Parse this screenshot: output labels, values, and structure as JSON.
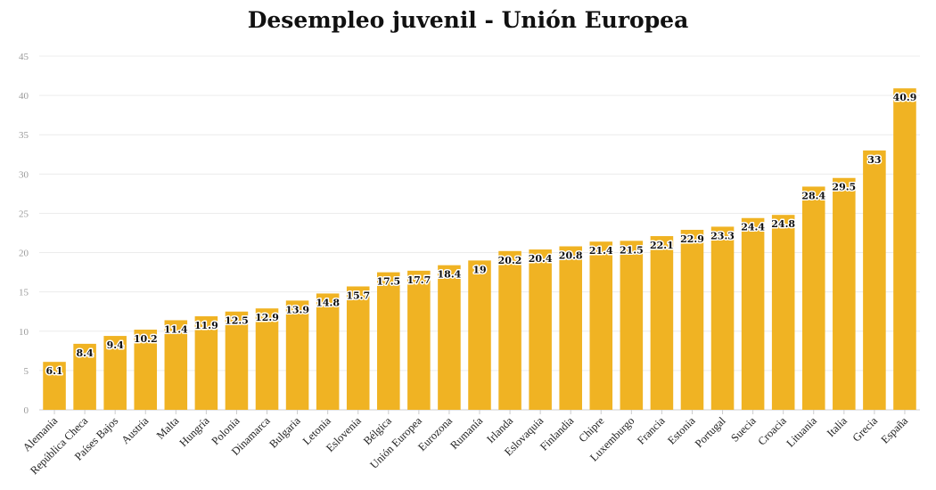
{
  "chart_data": {
    "type": "bar",
    "title": "Desempleo juvenil - Unión Europea",
    "xlabel": "",
    "ylabel": "",
    "ylim": [
      0,
      45
    ],
    "yticks": [
      0,
      5,
      10,
      15,
      20,
      25,
      30,
      35,
      40,
      45
    ],
    "grid": true,
    "legend": "none",
    "bar_color": "#F0B323",
    "categories": [
      "Alemania",
      "República Checa",
      "Países Bajos",
      "Austria",
      "Malta",
      "Hungría",
      "Polonia",
      "Dinamarca",
      "Bulgaria",
      "Letonia",
      "Eslovenia",
      "Bélgica",
      "Unión Europea",
      "Eurozona",
      "Rumanía",
      "Irlanda",
      "Eslovaquia",
      "Finlandia",
      "Chipre",
      "Luxemburgo",
      "Francia",
      "Estonia",
      "Portugal",
      "Suecia",
      "Croacia",
      "Lituania",
      "Italia",
      "Grecia",
      "España"
    ],
    "values": [
      6.1,
      8.4,
      9.4,
      10.2,
      11.4,
      11.9,
      12.5,
      12.9,
      13.9,
      14.8,
      15.7,
      17.5,
      17.7,
      18.4,
      19,
      20.2,
      20.4,
      20.8,
      21.4,
      21.5,
      22.1,
      22.9,
      23.3,
      24.4,
      24.8,
      28.4,
      29.5,
      33,
      40.9
    ]
  }
}
